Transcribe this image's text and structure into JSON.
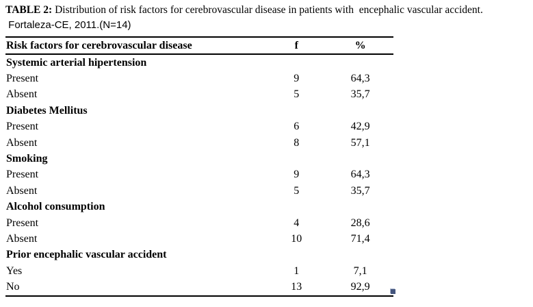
{
  "title": {
    "label": "TABLE 2:",
    "rest": " Distribution of risk factors for cerebrovascular disease in patients with  encephalic vascular accident.",
    "subtitle": " Fortaleza-CE, 2011.(N=14)"
  },
  "table": {
    "headers": {
      "factor": "Risk factors for cerebrovascular disease",
      "f": "f",
      "pct": "%"
    },
    "sections": [
      {
        "name": "Systemic arterial hipertension",
        "rows": [
          {
            "label": "Present",
            "f": "9",
            "pct": "64,3"
          },
          {
            "label": "Absent",
            "f": "5",
            "pct": "35,7"
          }
        ]
      },
      {
        "name": "Diabetes Mellitus",
        "rows": [
          {
            "label": "Present",
            "f": "6",
            "pct": "42,9"
          },
          {
            "label": "Absent",
            "f": "8",
            "pct": "57,1"
          }
        ]
      },
      {
        "name": "Smoking",
        "rows": [
          {
            "label": "Present",
            "f": "9",
            "pct": "64,3"
          },
          {
            "label": "Absent",
            "f": "5",
            "pct": "35,7"
          }
        ]
      },
      {
        "name": "Alcohol consumption",
        "rows": [
          {
            "label": "Present",
            "f": "4",
            "pct": "28,6"
          },
          {
            "label": "Absent",
            "f": "10",
            "pct": "71,4"
          }
        ]
      },
      {
        "name": "Prior encephalic vascular accident",
        "rows": [
          {
            "label": "Yes",
            "f": "1",
            "pct": "7,1"
          },
          {
            "label": "No",
            "f": "13",
            "pct": "92,9"
          }
        ]
      }
    ]
  },
  "colors": {
    "text": "#000000",
    "rule": "#000000",
    "resize_handle": "#44557d"
  }
}
